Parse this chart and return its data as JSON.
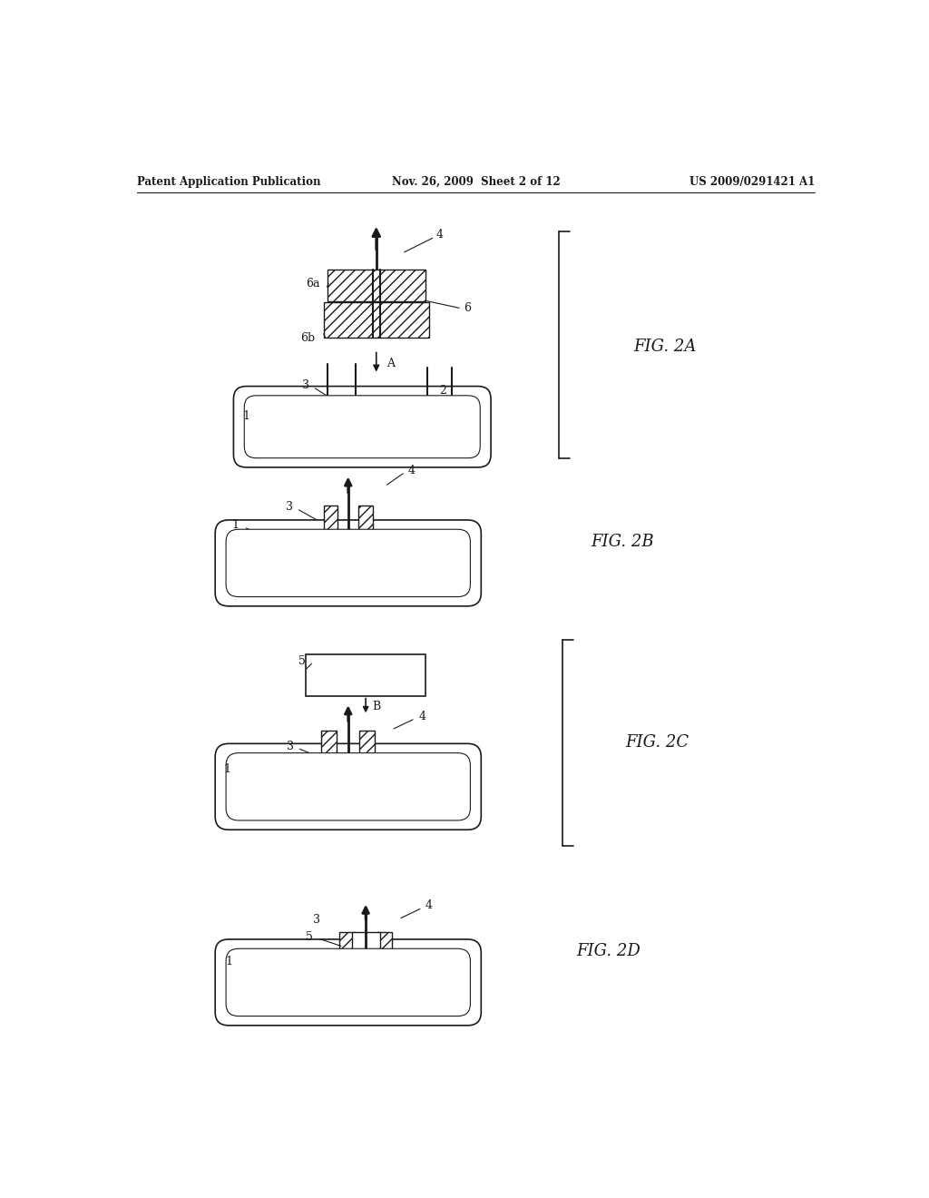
{
  "bg_color": "#ffffff",
  "line_color": "#1a1a1a",
  "header_left": "Patent Application Publication",
  "header_center": "Nov. 26, 2009  Sheet 2 of 12",
  "header_right": "US 2009/0291421 A1",
  "fig_labels": [
    "FIG. 2A",
    "FIG. 2B",
    "FIG. 2C",
    "FIG. 2D"
  ]
}
